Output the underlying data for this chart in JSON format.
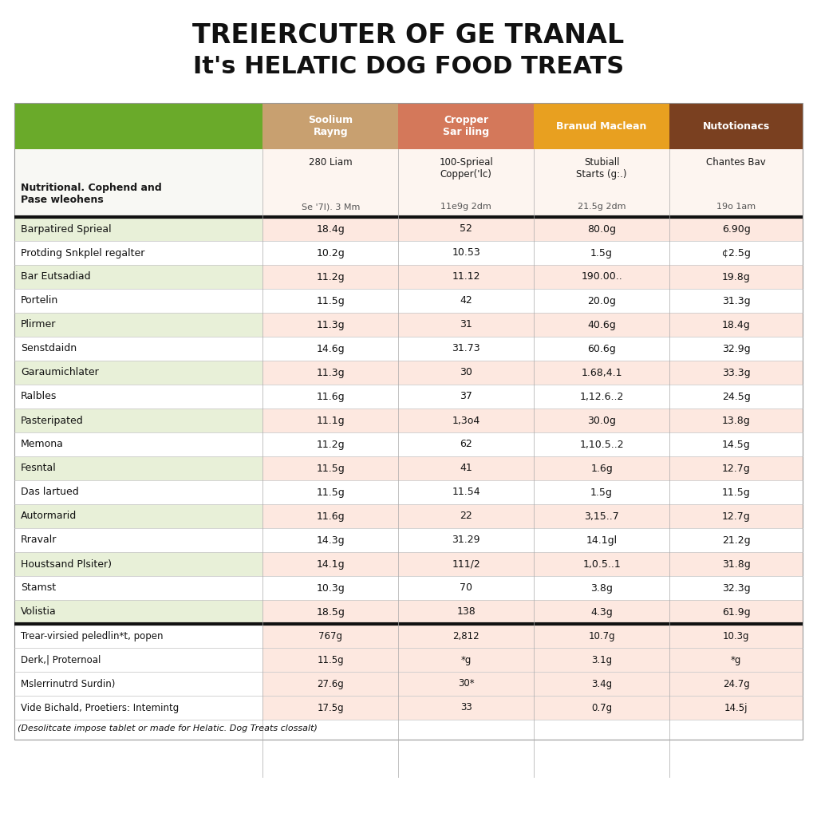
{
  "title_line1": "TREIERCUTER OF GE TRANAL",
  "title_line2": "It's HELATIC DOG FOOD TREATS",
  "col_headers": [
    "Soolium\nRayng",
    "Cropper\nSar iling",
    "Branud Maclean",
    "Nutotionacs"
  ],
  "col_header_colors": [
    "#c8a070",
    "#d4785a",
    "#e8a020",
    "#7a4020"
  ],
  "col_header_text_colors": [
    "#ffffff",
    "#ffffff",
    "#ffffff",
    "#ffffff"
  ],
  "subheader_col0": "Nutritional. Cophend and\nPase wleohens",
  "subheader_vals": [
    "280 Liam",
    "100-Sprieal\nCopper('lc)",
    "Stubiall\nStarts (g:.)",
    "Chantes Bav"
  ],
  "subheader_units": [
    "Se '7l). 3 Mm",
    "11e9g 2dm",
    "21.5g 2dm",
    "19o 1am"
  ],
  "col0_header_bg": "#6aaa2a",
  "rows": [
    [
      "Barpatired Sprieal",
      "18.4g",
      "52",
      "80.0g",
      "6.90g"
    ],
    [
      "Protding Snkplel regalter",
      "10.2g",
      "10.53",
      "1.5g",
      "¢2.5g"
    ],
    [
      "Bar Eutsadiad",
      "11.2g",
      "11.12",
      "190.00..",
      "19.8g"
    ],
    [
      "Portelin",
      "11.5g",
      "42",
      "20.0g",
      "31.3g"
    ],
    [
      "Plirmer",
      "11.3g",
      "31",
      "40.6g",
      "18.4g"
    ],
    [
      "Senstdaidn",
      "14.6g",
      "31.73",
      "60.6g",
      "32.9g"
    ],
    [
      "Garaumichlater",
      "11.3g",
      "30",
      "1.68,4.1",
      "33.3g"
    ],
    [
      "Ralbles",
      "11.6g",
      "37",
      "1,12.6..2",
      "24.5g"
    ],
    [
      "Pasteripated",
      "11.1g",
      "1,3o4",
      "30.0g",
      "13.8g"
    ],
    [
      "Memona",
      "11.2g",
      "62",
      "1,10.5..2",
      "14.5g"
    ],
    [
      "Fesntal",
      "11.5g",
      "41",
      "1.6g",
      "12.7g"
    ],
    [
      "Das lartued",
      "11.5g",
      "11.54",
      "1.5g",
      "11.5g"
    ],
    [
      "Autormarid",
      "11.6g",
      "22",
      "3,15..7",
      "12.7g"
    ],
    [
      "Rravalr",
      "14.3g",
      "31.29",
      "14.1gl",
      "21.2g"
    ],
    [
      "Houstsand Plsiter)",
      "14.1g",
      "111/2",
      "1,0.5..1",
      "31.8g"
    ],
    [
      "Stamst",
      "10.3g",
      "70",
      "3.8g",
      "32.3g"
    ],
    [
      "Volistia",
      "18.5g",
      "138",
      "4.3g",
      "61.9g"
    ]
  ],
  "footer_rows": [
    [
      "Trear-virsied peledlin*t, popen",
      "767g",
      "2,812",
      "10.7g",
      "10.3g"
    ],
    [
      "Derk,| Proternoal",
      "11.5g",
      "*g",
      "3.1g",
      "*g"
    ],
    [
      "Mslerrinutrd Surdin)",
      "27.6g",
      "30*",
      "3.4g",
      "24.7g"
    ],
    [
      "Vide Bichald, Proetiers: Intemintg",
      "17.5g",
      "33",
      "0.7g",
      "14.5j"
    ]
  ],
  "footnote": "(Desolitcate impose tablet or made for Helatic. Dog Treats clossalt)",
  "background_color": "#ffffff",
  "title_color": "#111111"
}
